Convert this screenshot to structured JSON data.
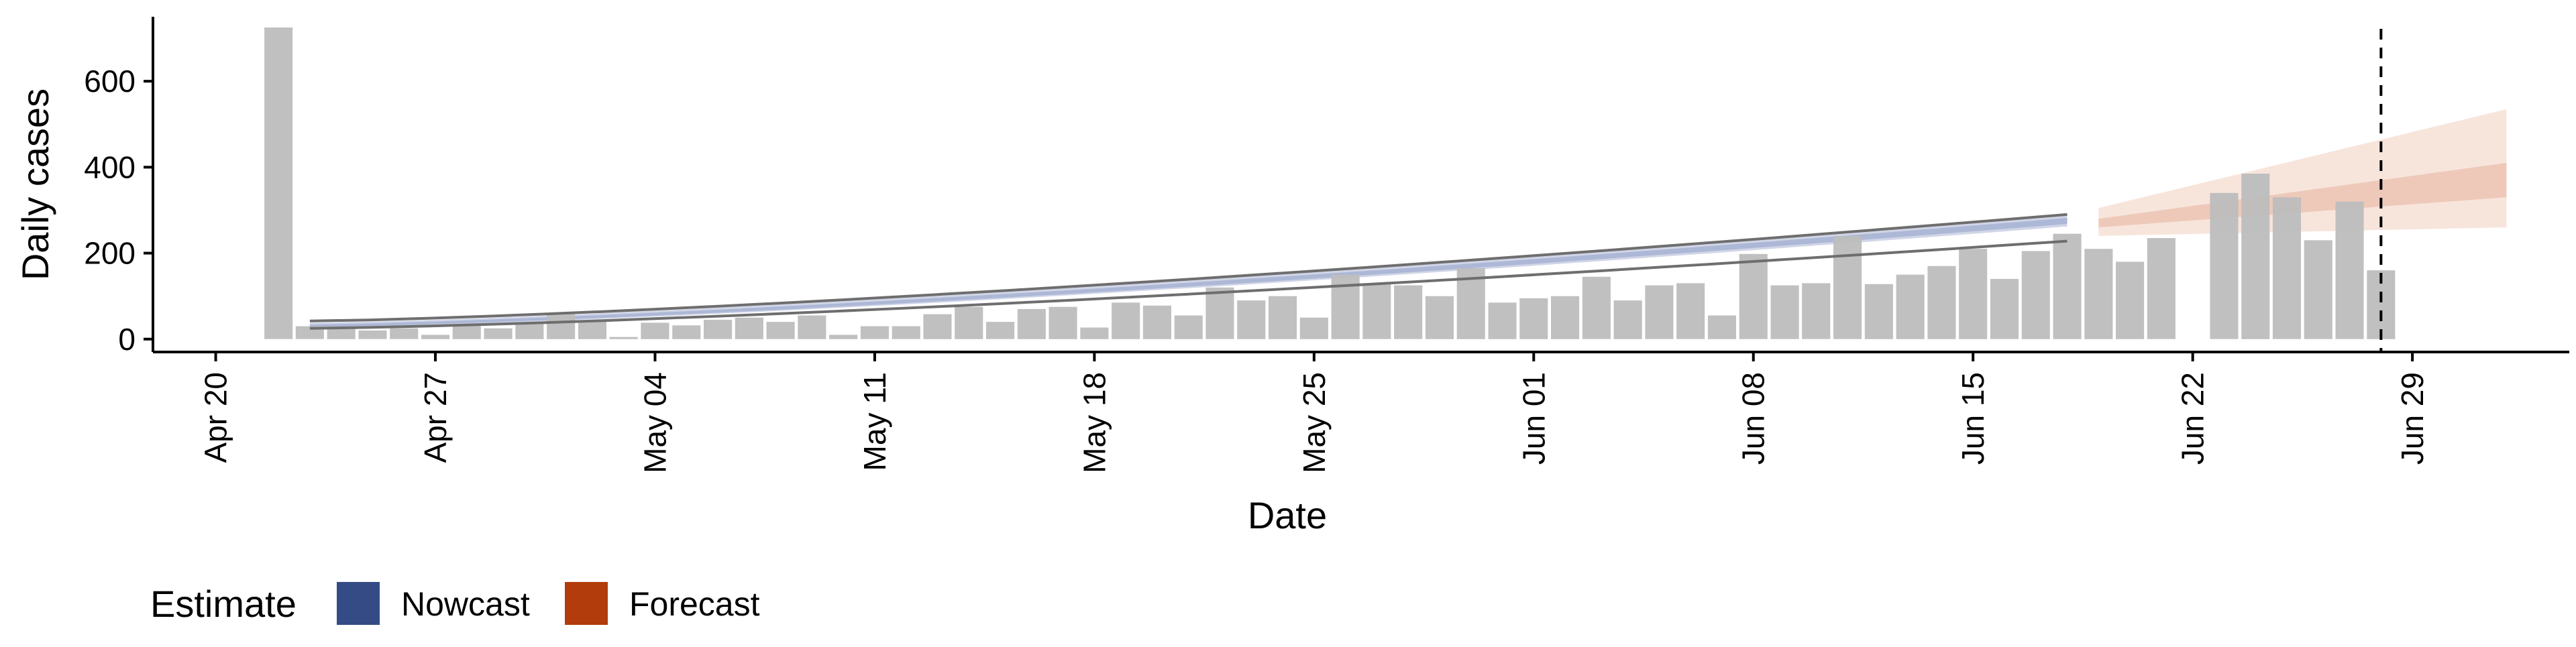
{
  "chart_data": {
    "type": "bar",
    "ylabel": "Daily cases",
    "xlabel": "Date",
    "ylim": [
      -30,
      750
    ],
    "xlim": [
      "2020-04-18",
      "2020-07-04"
    ],
    "y_ticks": [
      0,
      200,
      400,
      600
    ],
    "x_ticks": [
      {
        "date": "2020-04-20",
        "label": "Apr 20"
      },
      {
        "date": "2020-04-27",
        "label": "Apr 27"
      },
      {
        "date": "2020-05-04",
        "label": "May 04"
      },
      {
        "date": "2020-05-11",
        "label": "May 11"
      },
      {
        "date": "2020-05-18",
        "label": "May 18"
      },
      {
        "date": "2020-05-25",
        "label": "May 25"
      },
      {
        "date": "2020-06-01",
        "label": "Jun 01"
      },
      {
        "date": "2020-06-08",
        "label": "Jun 08"
      },
      {
        "date": "2020-06-15",
        "label": "Jun 15"
      },
      {
        "date": "2020-06-22",
        "label": "Jun 22"
      },
      {
        "date": "2020-06-29",
        "label": "Jun 29"
      }
    ],
    "x_tick_rotation": "vertical",
    "grid": false,
    "observed": {
      "color": "#bdbdbd",
      "start_date": "2020-04-22",
      "values": [
        725,
        30,
        26,
        20,
        25,
        10,
        32,
        25,
        38,
        60,
        43,
        5,
        38,
        32,
        45,
        50,
        40,
        55,
        10,
        30,
        30,
        58,
        75,
        40,
        70,
        75,
        27,
        85,
        78,
        55,
        120,
        90,
        100,
        50,
        150,
        130,
        125,
        100,
        165,
        85,
        95,
        100,
        145,
        90,
        125,
        130,
        55,
        198,
        125,
        130,
        240,
        128,
        150,
        170,
        210,
        140,
        205,
        245,
        210,
        180,
        235,
        null,
        340,
        385,
        330,
        230,
        320,
        160
      ]
    },
    "nowcast": {
      "start_date": "2020-04-23",
      "end_date": "2020-06-18",
      "inner_band": [
        [
          28,
          34
        ],
        [
          268,
          282
        ]
      ],
      "mid_band": [
        [
          26,
          38
        ],
        [
          262,
          290
        ]
      ],
      "outer_band": [
        [
          25,
          42
        ],
        [
          228,
          290
        ]
      ]
    },
    "forecast": {
      "start_date": "2020-06-19",
      "end_date": "2020-07-02",
      "inner_band": [
        [
          260,
          280
        ],
        [
          330,
          410
        ]
      ],
      "outer_band": [
        [
          240,
          305
        ],
        [
          260,
          535
        ]
      ]
    },
    "vline": {
      "date": "2020-06-28",
      "style": "dashed"
    },
    "legend": {
      "title": "Estimate",
      "placement": "bottom-left",
      "items": [
        {
          "label": "Nowcast",
          "color": "#344B86"
        },
        {
          "label": "Forecast",
          "color": "#B23C0B"
        }
      ]
    },
    "colors": {
      "nowcast_inner": "#a9b4d4",
      "nowcast_mid": "#c8cee3",
      "nowcast_outer_line": "#6e6e6e",
      "forecast_inner": "#e7b29c",
      "forecast_outer": "#f1d3c5"
    }
  }
}
